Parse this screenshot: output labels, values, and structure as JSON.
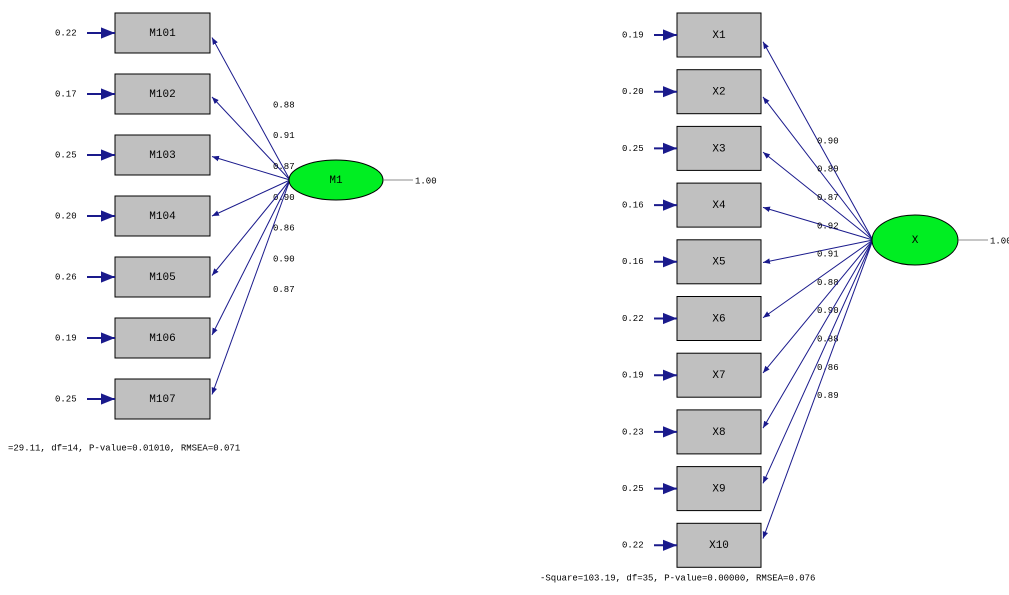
{
  "models": [
    {
      "latent": {
        "label": "M1",
        "variance": "1.00"
      },
      "indicators": [
        {
          "label": "M101",
          "error": "0.22",
          "loading": "0.88"
        },
        {
          "label": "M102",
          "error": "0.17",
          "loading": "0.91"
        },
        {
          "label": "M103",
          "error": "0.25",
          "loading": "0.87"
        },
        {
          "label": "M104",
          "error": "0.20",
          "loading": "0.90"
        },
        {
          "label": "M105",
          "error": "0.26",
          "loading": "0.86"
        },
        {
          "label": "M106",
          "error": "0.19",
          "loading": "0.90"
        },
        {
          "label": "M107",
          "error": "0.25",
          "loading": "0.87"
        }
      ],
      "fit": "=29.11, df=14, P-value=0.01010, RMSEA=0.071"
    },
    {
      "latent": {
        "label": "X",
        "variance": "1.00"
      },
      "indicators": [
        {
          "label": "X1",
          "error": "0.19",
          "loading": "0.90"
        },
        {
          "label": "X2",
          "error": "0.20",
          "loading": "0.89"
        },
        {
          "label": "X3",
          "error": "0.25",
          "loading": "0.87"
        },
        {
          "label": "X4",
          "error": "0.16",
          "loading": "0.92"
        },
        {
          "label": "X5",
          "error": "0.16",
          "loading": "0.91"
        },
        {
          "label": "X6",
          "error": "0.22",
          "loading": "0.88"
        },
        {
          "label": "X7",
          "error": "0.19",
          "loading": "0.90"
        },
        {
          "label": "X8",
          "error": "0.23",
          "loading": "0.88"
        },
        {
          "label": "X9",
          "error": "0.25",
          "loading": "0.86"
        },
        {
          "label": "X10",
          "error": "0.22",
          "loading": "0.89"
        }
      ],
      "fit": "-Square=103.19, df=35, P-value=0.00000, RMSEA=0.076"
    }
  ]
}
